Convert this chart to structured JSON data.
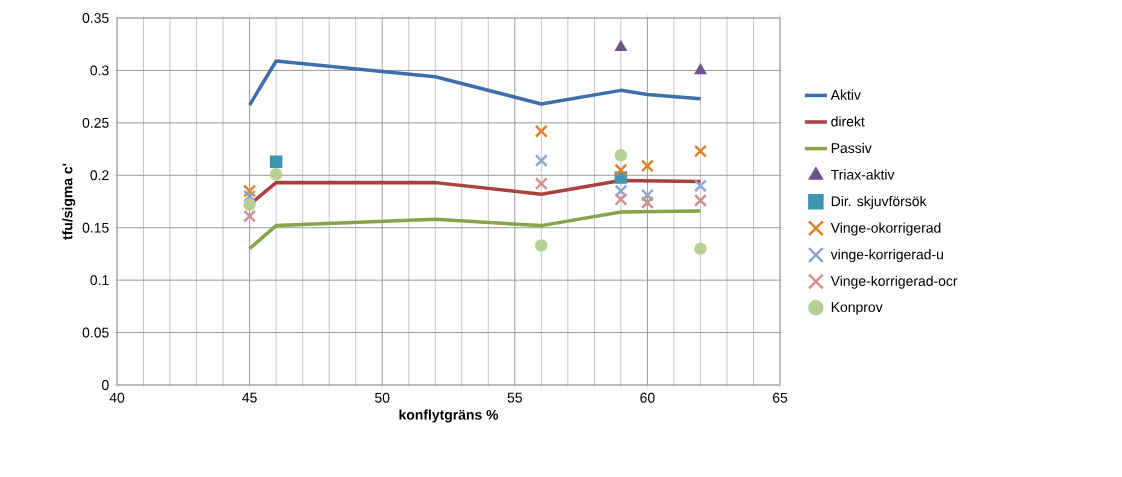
{
  "chart_data": {
    "type": "line",
    "xlabel": "konflytgräns %",
    "ylabel": "tfu/sigma c'",
    "xlim": [
      40,
      65
    ],
    "xticks": [
      40,
      45,
      50,
      55,
      60,
      65
    ],
    "ylim": [
      0,
      0.35
    ],
    "yticks": [
      0,
      0.05,
      0.1,
      0.15,
      0.2,
      0.25,
      0.3,
      0.35
    ],
    "grid": true,
    "legend": "right",
    "series": [
      {
        "name": "Aktiv",
        "color": "#3f6faa",
        "marker": "none",
        "x": [
          45,
          46,
          52,
          56,
          59,
          60,
          62
        ],
        "values": [
          0.267,
          0.309,
          0.294,
          0.268,
          0.281,
          0.277,
          0.273
        ]
      },
      {
        "name": "direkt",
        "color": "#a8423f",
        "marker": "none",
        "x": [
          45,
          46,
          52,
          56,
          59,
          62
        ],
        "values": [
          0.172,
          0.193,
          0.193,
          0.182,
          0.195,
          0.194
        ]
      },
      {
        "name": "Passiv",
        "color": "#86a44a",
        "marker": "none",
        "x": [
          45,
          46,
          52,
          56,
          59,
          62
        ],
        "values": [
          0.13,
          0.152,
          0.158,
          0.152,
          0.165,
          0.166
        ]
      },
      {
        "name": "Triax-aktiv",
        "type": "scatter",
        "color": "#6e548d",
        "marker": "triangle",
        "x": [
          59,
          62
        ],
        "values": [
          0.322,
          0.3
        ]
      },
      {
        "name": "Dir. skjuvförsök",
        "type": "scatter",
        "color": "#3d96ae",
        "marker": "square",
        "x": [
          46,
          59
        ],
        "values": [
          0.213,
          0.198
        ]
      },
      {
        "name": "Vinge-okorrigerad",
        "type": "scatter",
        "color": "#e0822c",
        "marker": "cross",
        "x": [
          45,
          56,
          59,
          60,
          62
        ],
        "values": [
          0.185,
          0.242,
          0.205,
          0.209,
          0.223
        ]
      },
      {
        "name": "vinge-korrigerad-u",
        "type": "scatter",
        "color": "#8ea5ce",
        "marker": "cross",
        "x": [
          45,
          56,
          59,
          60,
          62
        ],
        "values": [
          0.18,
          0.214,
          0.185,
          0.181,
          0.19
        ]
      },
      {
        "name": "Vinge-korrigerad-ocr",
        "type": "scatter",
        "color": "#d09290",
        "marker": "cross",
        "x": [
          45,
          56,
          59,
          60,
          62
        ],
        "values": [
          0.161,
          0.192,
          0.177,
          0.174,
          0.176
        ]
      },
      {
        "name": "Konprov",
        "type": "scatter",
        "color": "#b7cf94",
        "marker": "circle",
        "x": [
          45,
          46,
          56,
          59,
          62
        ],
        "values": [
          0.172,
          0.201,
          0.133,
          0.219,
          0.13
        ]
      }
    ]
  }
}
